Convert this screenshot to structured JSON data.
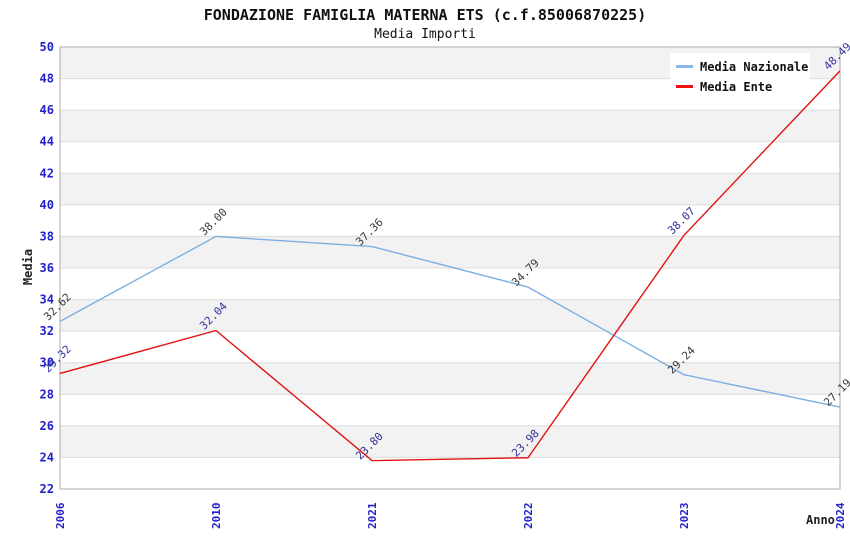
{
  "chart_data": {
    "type": "line",
    "title": "FONDAZIONE FAMIGLIA MATERNA ETS (c.f.85006870225)",
    "subtitle": "Media Importi",
    "xlabel": "Anno",
    "ylabel": "Media",
    "categories": [
      "2006",
      "2010",
      "2021",
      "2022",
      "2023",
      "2024"
    ],
    "series": [
      {
        "name": "Media Nazionale",
        "color": "#7cafe2",
        "label_color": "#3a3a3a",
        "values": [
          32.62,
          38.0,
          37.36,
          34.79,
          29.24,
          27.19
        ]
      },
      {
        "name": "Media Ente",
        "color": "#e01212",
        "label_color": "#333399",
        "values": [
          29.32,
          32.04,
          23.8,
          23.98,
          38.07,
          48.49
        ]
      }
    ],
    "ylim": [
      22,
      50
    ],
    "ytick_step": 2,
    "legend_position": "top-right",
    "grid": "horizontal-bands",
    "band_color": "#f2f2f2",
    "gridline_color": "#dcdcdc",
    "border_color": "#adadad",
    "tick_label_color": "#2222cc"
  }
}
